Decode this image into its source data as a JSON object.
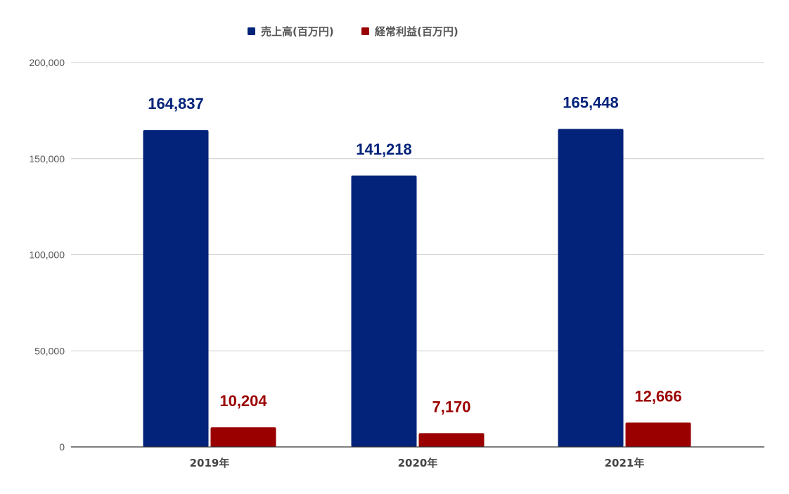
{
  "chart_data": {
    "type": "bar",
    "categories": [
      "2019年",
      "2020年",
      "2021年"
    ],
    "series": [
      {
        "name": "売上高(百万円)",
        "values": [
          164837,
          141218,
          165448
        ],
        "labels": [
          "164,837",
          "141,218",
          "165,448"
        ],
        "color": "#03227a"
      },
      {
        "name": "経常利益(百万円)",
        "values": [
          10204,
          7170,
          12666
        ],
        "labels": [
          "10,204",
          "7,170",
          "12,666"
        ],
        "color": "#9b0000"
      }
    ],
    "ylim": [
      0,
      200000
    ],
    "yticks": [
      0,
      50000,
      100000,
      150000,
      200000
    ],
    "ytick_labels": [
      "0",
      "50,000",
      "100,000",
      "150,000",
      "200,000"
    ],
    "grid": true,
    "legend_position": "top",
    "title": "",
    "xlabel": "",
    "ylabel": ""
  }
}
